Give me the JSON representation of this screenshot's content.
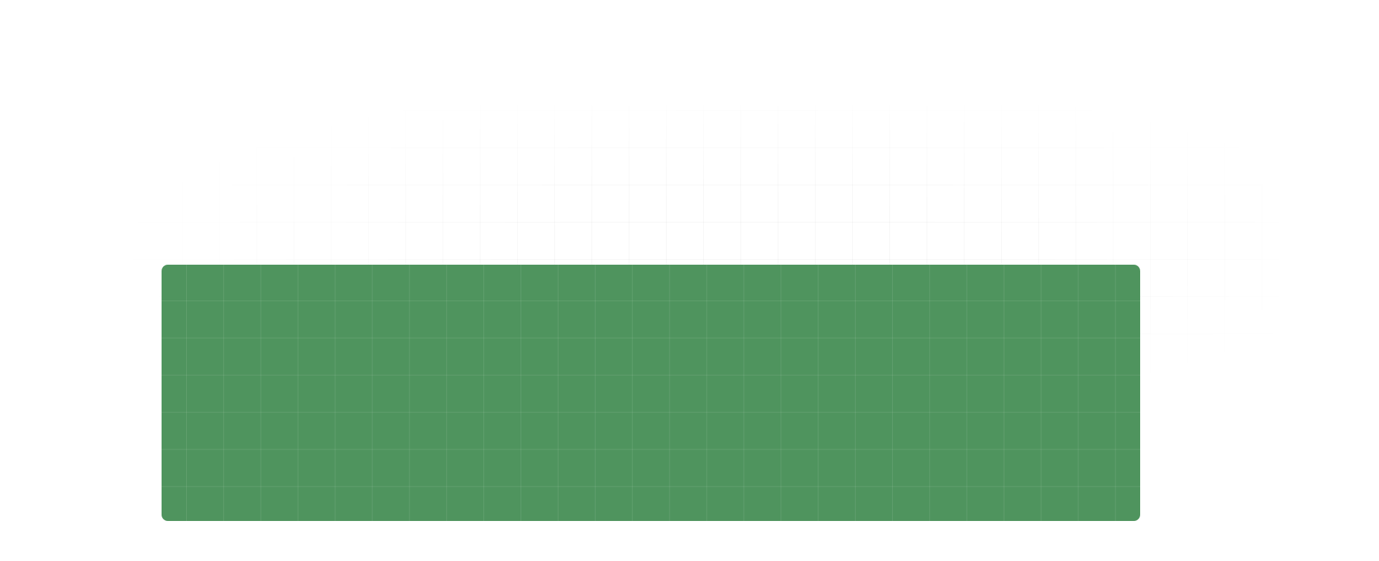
{
  "panel": {
    "fill_color": "#4f945e",
    "grid_line_color": "#6aa777"
  },
  "background": {
    "color": "#ffffff",
    "grid_line_color": "#f5f5f5"
  }
}
